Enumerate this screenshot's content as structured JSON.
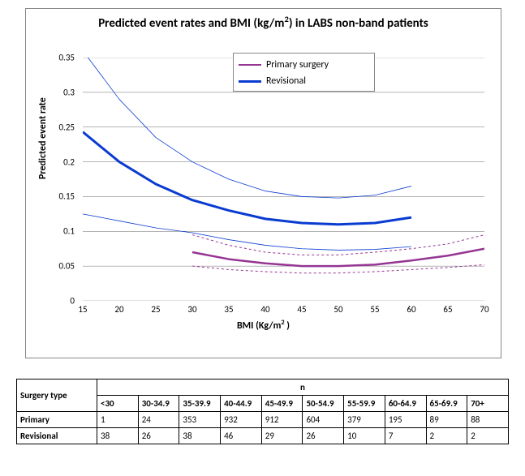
{
  "chart": {
    "type": "line",
    "title_html": "Predicted event rates and BMI (kg/m<sup>2</sup>) in LABS non-band patients",
    "title_fontsize": 15,
    "background_color": "#ffffff",
    "grid_color": "#888888",
    "x": {
      "label_html": "BMI (Kg/m<sup>2</sup> )",
      "min": 15,
      "max": 70,
      "ticks": [
        15,
        20,
        25,
        30,
        35,
        40,
        45,
        50,
        55,
        60,
        65,
        70
      ],
      "label_fontsize": 12
    },
    "y": {
      "label": "Predicted event rate",
      "min": 0,
      "max": 0.35,
      "ticks": [
        0,
        0.05,
        0.1,
        0.15,
        0.2,
        0.25,
        0.3,
        0.35
      ],
      "label_fontsize": 12
    },
    "legend": {
      "position": "top-center",
      "entries": [
        {
          "label": "Primary surgery",
          "color": "#953593",
          "width": 2.5
        },
        {
          "label": "Revisional",
          "color": "#0a3bd1",
          "width": 3.0
        }
      ]
    },
    "series": [
      {
        "name": "Primary surgery",
        "color": "#953593",
        "width": 2.5,
        "dash": "none",
        "x": [
          30,
          35,
          40,
          45,
          50,
          55,
          60,
          65,
          70
        ],
        "y": [
          0.07,
          0.06,
          0.054,
          0.05,
          0.05,
          0.052,
          0.058,
          0.065,
          0.075
        ]
      },
      {
        "name": "Primary upper CI",
        "color": "#953593",
        "width": 1.0,
        "dash": "3,3",
        "x": [
          30,
          35,
          40,
          45,
          50,
          55,
          60,
          65,
          70
        ],
        "y": [
          0.095,
          0.08,
          0.07,
          0.066,
          0.066,
          0.07,
          0.075,
          0.082,
          0.095
        ]
      },
      {
        "name": "Primary lower CI",
        "color": "#953593",
        "width": 1.0,
        "dash": "3,3",
        "x": [
          30,
          35,
          40,
          45,
          50,
          55,
          60,
          65,
          70
        ],
        "y": [
          0.05,
          0.045,
          0.042,
          0.04,
          0.04,
          0.042,
          0.045,
          0.048,
          0.052
        ]
      },
      {
        "name": "Revisional",
        "color": "#0a3bd1",
        "width": 3.0,
        "dash": "none",
        "x": [
          15,
          20,
          25,
          30,
          35,
          40,
          45,
          50,
          55,
          60
        ],
        "y": [
          0.243,
          0.2,
          0.168,
          0.145,
          0.13,
          0.118,
          0.112,
          0.11,
          0.112,
          0.12
        ]
      },
      {
        "name": "Revisional upper CI",
        "color": "#0a3bd1",
        "width": 0.8,
        "dash": "none",
        "x": [
          15,
          20,
          25,
          30,
          35,
          40,
          45,
          50,
          55,
          60
        ],
        "y": [
          0.36,
          0.29,
          0.235,
          0.2,
          0.175,
          0.158,
          0.15,
          0.148,
          0.152,
          0.165
        ]
      },
      {
        "name": "Revisional lower CI",
        "color": "#0a3bd1",
        "width": 0.8,
        "dash": "none",
        "x": [
          15,
          20,
          25,
          30,
          35,
          40,
          45,
          50,
          55,
          60
        ],
        "y": [
          0.125,
          0.115,
          0.105,
          0.098,
          0.088,
          0.08,
          0.075,
          0.073,
          0.074,
          0.078
        ]
      }
    ]
  },
  "table": {
    "header": {
      "surgery_label": "Surgery  type",
      "n_label": "n"
    },
    "bins": [
      "<30",
      "30-34.9",
      "35-39.9",
      "40-44.9",
      "45-49.9",
      "50-54.9",
      "55-59.9",
      "60-64.9",
      "65-69.9",
      "70+"
    ],
    "rows": [
      {
        "label": "Primary",
        "values": [
          "1",
          "24",
          "353",
          "932",
          "912",
          "604",
          "379",
          "195",
          "89",
          "88"
        ]
      },
      {
        "label": "Revisional",
        "values": [
          "38",
          "26",
          "38",
          "46",
          "29",
          "26",
          "10",
          "7",
          "2",
          "2"
        ]
      }
    ],
    "border_color": "#000000",
    "font_size": 11
  }
}
